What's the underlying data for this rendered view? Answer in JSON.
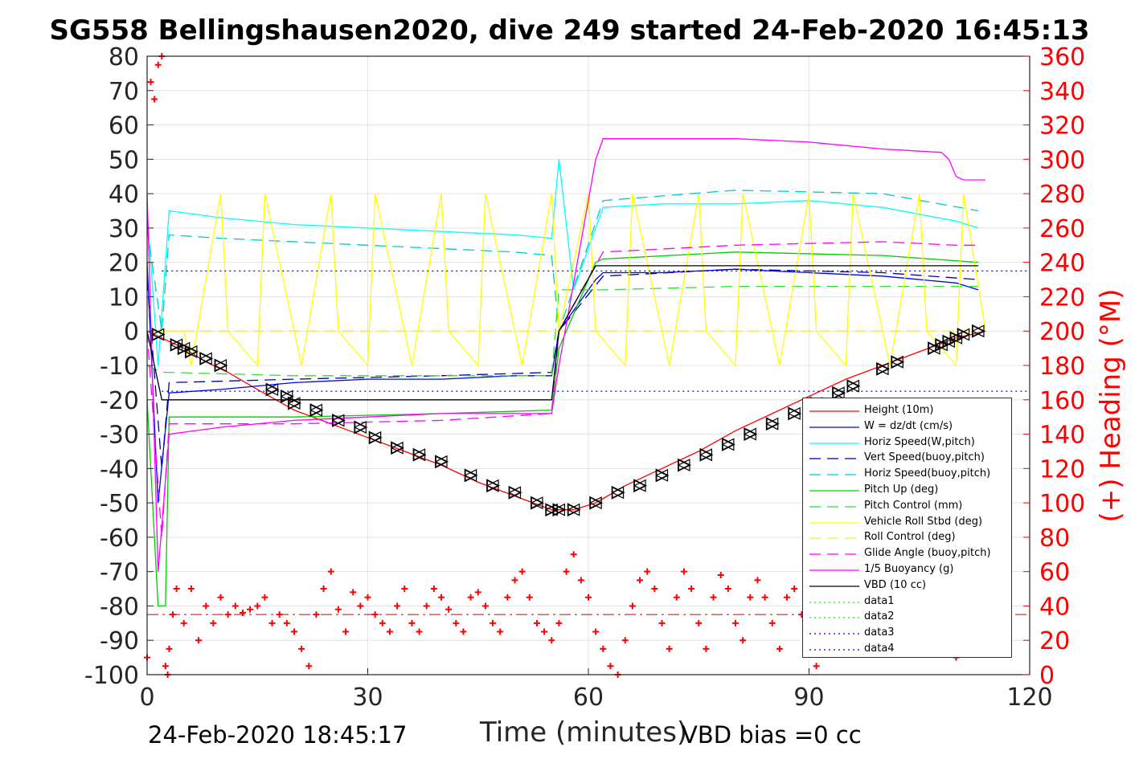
{
  "title": "SG558 Bellingshausen2020, dive 249 started 24-Feb-2020 16:45:13",
  "footer": {
    "left": "24-Feb-2020 18:45:17",
    "right": "VBD bias =0 cc"
  },
  "chart_data": {
    "type": "line",
    "xlabel": "Time (minutes)",
    "ylabel_right": "(+) Heading (°M)",
    "xlim": [
      0,
      120
    ],
    "ylim_left": [
      -100,
      80
    ],
    "ylim_right": [
      0,
      360
    ],
    "xticks": [
      0,
      30,
      60,
      90,
      120
    ],
    "xtick_labels": [
      "0",
      "30",
      "60",
      "90",
      "120"
    ],
    "yticks_left": [
      80,
      70,
      60,
      50,
      40,
      30,
      20,
      10,
      0,
      -10,
      -20,
      -30,
      -40,
      -50,
      -60,
      -70,
      -80,
      -90,
      -100
    ],
    "ytick_labels_left": [
      "80",
      "70",
      "60",
      "50",
      "40",
      "30",
      "20",
      "10",
      "0",
      "-10",
      "-20",
      "-30",
      "-40",
      "-50",
      "-60",
      "-70",
      "-80",
      "-90",
      "-100"
    ],
    "yticks_right": [
      360,
      340,
      320,
      300,
      280,
      260,
      240,
      220,
      200,
      180,
      160,
      140,
      120,
      100,
      80,
      60,
      40,
      20,
      0
    ],
    "ytick_labels_right": [
      "360",
      "340",
      "320",
      "300",
      "280",
      "260",
      "240",
      "220",
      "200",
      "180",
      "160",
      "140",
      "120",
      "100",
      "80",
      "60",
      "40",
      "20",
      "0"
    ],
    "grid": true,
    "legend_position": "lower-right",
    "series": [
      {
        "name": "Height (10m)",
        "color": "#ff0000",
        "style": "solid",
        "x": [
          0,
          2,
          5,
          8,
          11,
          15,
          20,
          25,
          30,
          35,
          40,
          45,
          50,
          55,
          58,
          61,
          65,
          70,
          75,
          80,
          85,
          90,
          95,
          100,
          105,
          110,
          114
        ],
        "y": [
          0,
          -2,
          -5,
          -9,
          -12,
          -17,
          -23,
          -27,
          -31,
          -35,
          -39,
          -44,
          -48,
          -52,
          -52,
          -50,
          -45,
          -40,
          -35,
          -29,
          -24,
          -19,
          -14,
          -10,
          -6,
          -2,
          0
        ]
      },
      {
        "name": "W = dz/dt (cm/s)",
        "color": "#0000ff",
        "style": "solid",
        "x": [
          0,
          1.5,
          3,
          10,
          20,
          30,
          40,
          50,
          55,
          56,
          61,
          62,
          70,
          80,
          90,
          100,
          110,
          113
        ],
        "y": [
          20,
          -50,
          -18,
          -17,
          -15,
          -14,
          -14,
          -13,
          -13,
          0,
          15,
          17,
          17,
          18,
          17,
          16,
          14,
          12
        ]
      },
      {
        "name": "Horiz Speed(W,pitch)",
        "color": "#00ffff",
        "style": "solid",
        "x": [
          0,
          1.5,
          3,
          10,
          20,
          30,
          40,
          50,
          55,
          56,
          58,
          61,
          62,
          70,
          80,
          90,
          100,
          110,
          113
        ],
        "y": [
          35,
          -10,
          35,
          33,
          31,
          30,
          29,
          28,
          27,
          50,
          12,
          30,
          36,
          37,
          37,
          38,
          36,
          32,
          30
        ]
      },
      {
        "name": "Vert Speed(buoy,pitch)",
        "color": "#0000aa",
        "style": "dashed",
        "x": [
          0,
          2,
          3,
          20,
          40,
          55,
          56,
          62,
          80,
          100,
          113
        ],
        "y": [
          15,
          -40,
          -15,
          -14,
          -13,
          -12,
          0,
          16,
          18,
          17,
          15
        ]
      },
      {
        "name": "Horiz Speed(buoy,pitch)",
        "color": "#00cccc",
        "style": "dashed",
        "x": [
          0,
          2,
          3,
          10,
          30,
          50,
          55,
          56,
          62,
          80,
          100,
          113
        ],
        "y": [
          30,
          0,
          28,
          27,
          25,
          23,
          22,
          0,
          38,
          41,
          40,
          35
        ]
      },
      {
        "name": "Pitch Up (deg)",
        "color": "#00cc00",
        "style": "solid",
        "x": [
          0,
          1.5,
          2.5,
          3,
          20,
          40,
          55,
          56,
          61,
          62,
          80,
          100,
          113
        ],
        "y": [
          -20,
          -80,
          -80,
          -25,
          -25,
          -24,
          -23,
          -5,
          20,
          21,
          23,
          22,
          20
        ]
      },
      {
        "name": "Pitch Control (mm)",
        "color": "#33dd33",
        "style": "dashed",
        "x": [
          0,
          2,
          3,
          20,
          55,
          56,
          62,
          80,
          113
        ],
        "y": [
          -10,
          -12,
          -12,
          -13,
          -13,
          12,
          12,
          13,
          13
        ]
      },
      {
        "name": "Vehicle Roll Stbd (deg)",
        "color": "#ffff00",
        "style": "solid",
        "x": [
          0,
          5,
          6,
          10,
          11,
          15,
          16,
          20,
          21,
          25,
          26,
          30,
          31,
          35,
          36,
          40,
          41,
          45,
          46,
          50,
          51,
          55,
          56,
          60,
          61,
          65,
          66,
          70,
          71,
          75,
          76,
          80,
          81,
          85,
          86,
          90,
          91,
          95,
          96,
          100,
          101,
          105,
          106,
          110,
          111,
          114
        ],
        "y": [
          0,
          0,
          -10,
          40,
          0,
          -10,
          40,
          0,
          -10,
          40,
          0,
          -10,
          40,
          0,
          -10,
          40,
          0,
          -10,
          40,
          0,
          -10,
          40,
          0,
          40,
          0,
          -10,
          40,
          0,
          -10,
          40,
          0,
          -10,
          40,
          0,
          -10,
          40,
          0,
          -10,
          40,
          0,
          -10,
          40,
          0,
          -10,
          40,
          0
        ]
      },
      {
        "name": "Roll Control (deg)",
        "color": "#eeee44",
        "style": "dashed",
        "x": [
          0,
          10,
          30,
          55,
          60,
          90,
          113
        ],
        "y": [
          0,
          0,
          0,
          0,
          0,
          0,
          0
        ]
      },
      {
        "name": "Glide Angle (buoy,pitch)",
        "color": "#ff00ff",
        "style": "dashed",
        "x": [
          0,
          2,
          3,
          20,
          40,
          55,
          56,
          62,
          80,
          100,
          110,
          113
        ],
        "y": [
          0,
          -60,
          -27,
          -27,
          -26,
          -24,
          0,
          23,
          25,
          26,
          25,
          25
        ]
      },
      {
        "name": "1/5 Buoyancy (g)",
        "color": "#ff00ff",
        "style": "solid",
        "x": [
          0,
          1.5,
          3,
          10,
          20,
          30,
          40,
          50,
          55,
          56,
          61,
          62,
          70,
          80,
          90,
          100,
          108,
          109,
          110,
          111,
          114
        ],
        "y": [
          40,
          -70,
          -30,
          -28,
          -26,
          -25,
          -24,
          -24,
          -24,
          -10,
          50,
          56,
          56,
          56,
          55,
          53,
          52,
          50,
          45,
          44,
          44
        ]
      },
      {
        "name": "VBD (10 cc)",
        "color": "#000000",
        "style": "solid",
        "x": [
          0,
          2,
          3,
          55,
          56,
          61,
          62,
          113
        ],
        "y": [
          0,
          -20,
          -20,
          -20,
          0,
          19,
          19,
          19
        ]
      },
      {
        "name": "data1",
        "color": "#00ff00",
        "style": "dotted",
        "x": [],
        "y": []
      },
      {
        "name": "data2",
        "color": "#00ff00",
        "style": "dotted",
        "x": [],
        "y": []
      },
      {
        "name": "data3",
        "color": "#0000ff",
        "style": "dotted",
        "x": [
          2,
          120
        ],
        "y": [
          17.5,
          17.5
        ]
      },
      {
        "name": "data4",
        "color": "#0000ff",
        "style": "dotted",
        "x": [
          2,
          120
        ],
        "y": [
          -17.5,
          -17.5
        ]
      }
    ],
    "markers": {
      "name": "depth markers (triangles)",
      "x": [
        1.5,
        4,
        5,
        6,
        8,
        10,
        17,
        19,
        20,
        23,
        26,
        29,
        31,
        34,
        37,
        40,
        44,
        47,
        50,
        53,
        55,
        56,
        58,
        61,
        64,
        67,
        70,
        73,
        76,
        79,
        82,
        85,
        88,
        91,
        94,
        96,
        100,
        102,
        107,
        108,
        109,
        110,
        111,
        113
      ],
      "y": [
        -1,
        -4,
        -5,
        -6,
        -8,
        -10,
        -17,
        -19,
        -21,
        -23,
        -26,
        -28,
        -31,
        -34,
        -36,
        -38,
        -42,
        -45,
        -47,
        -50,
        -52,
        -52,
        -52,
        -50,
        -47,
        -45,
        -42,
        -39,
        -36,
        -33,
        -30,
        -27,
        -24,
        -21,
        -18,
        -16,
        -11,
        -9,
        -5,
        -4,
        -3,
        -2,
        -1,
        0
      ]
    },
    "heading": {
      "name": "(+) Heading",
      "color": "#ff0000",
      "units": "deg M (right axis)",
      "x": [
        0,
        0.5,
        1,
        1.5,
        2,
        2.5,
        2.8,
        3,
        3.5,
        4,
        5,
        6,
        7,
        8,
        9,
        10,
        11,
        12,
        13,
        14,
        15,
        16,
        17,
        18,
        19,
        20,
        21,
        22,
        23,
        24,
        25,
        26,
        27,
        28,
        29,
        30,
        31,
        32,
        33,
        34,
        35,
        36,
        37,
        38,
        39,
        40,
        41,
        42,
        43,
        44,
        45,
        46,
        47,
        48,
        49,
        50,
        51,
        52,
        53,
        54,
        55,
        56,
        57,
        58,
        59,
        60,
        61,
        62,
        63,
        64,
        65,
        66,
        67,
        68,
        69,
        70,
        71,
        72,
        73,
        74,
        75,
        76,
        77,
        78,
        79,
        80,
        81,
        82,
        83,
        84,
        85,
        86,
        87,
        88,
        89,
        90,
        91,
        92,
        93,
        94,
        95,
        96,
        97,
        98,
        99,
        100,
        101,
        102,
        103,
        104,
        105,
        106,
        107,
        108,
        109,
        110,
        111,
        112,
        113
      ],
      "y": [
        10,
        345,
        335,
        355,
        360,
        5,
        0,
        15,
        35,
        50,
        30,
        50,
        20,
        40,
        30,
        45,
        35,
        40,
        36,
        38,
        40,
        45,
        30,
        35,
        30,
        25,
        15,
        5,
        35,
        50,
        60,
        38,
        25,
        48,
        40,
        45,
        35,
        30,
        25,
        40,
        50,
        30,
        25,
        40,
        50,
        45,
        38,
        30,
        25,
        45,
        48,
        40,
        30,
        25,
        45,
        55,
        60,
        45,
        30,
        25,
        20,
        30,
        60,
        70,
        55,
        45,
        25,
        15,
        5,
        0,
        20,
        40,
        55,
        60,
        50,
        30,
        15,
        45,
        60,
        50,
        30,
        15,
        45,
        58,
        50,
        30,
        20,
        45,
        55,
        45,
        30,
        15,
        45,
        50,
        35,
        20,
        5,
        40,
        45,
        35,
        25,
        35,
        40,
        45,
        35,
        25,
        38,
        40,
        40,
        30,
        20,
        35,
        45,
        40,
        25,
        10,
        40,
        45,
        38
      ]
    },
    "heading_target": {
      "name": "heading target",
      "color": "#cc0000",
      "style": "dash-dot",
      "value": 35
    }
  }
}
